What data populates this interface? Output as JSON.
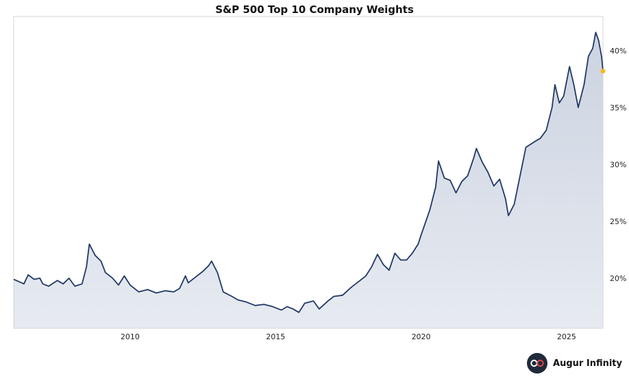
{
  "chart_data": {
    "type": "area",
    "title": "S&P 500 Top 10 Company Weights",
    "xlabel": "",
    "ylabel": "",
    "x_ticks": [
      "2010",
      "2015",
      "2020",
      "2025"
    ],
    "y_ticks": [
      "20%",
      "25%",
      "30%",
      "35%",
      "40%"
    ],
    "ylim": [
      15.6,
      43.0
    ],
    "xlim": [
      2006.0,
      2026.25
    ],
    "grid": false,
    "line_color": "#1f3864",
    "fill_color": "#c9d1df",
    "marker_color": "#f2b820",
    "series": [
      {
        "points": [
          [
            2006.0,
            19.9
          ],
          [
            2006.35,
            19.5
          ],
          [
            2006.5,
            20.3
          ],
          [
            2006.7,
            19.9
          ],
          [
            2006.9,
            20.0
          ],
          [
            2007.0,
            19.5
          ],
          [
            2007.2,
            19.3
          ],
          [
            2007.5,
            19.8
          ],
          [
            2007.7,
            19.5
          ],
          [
            2007.9,
            20.0
          ],
          [
            2008.1,
            19.3
          ],
          [
            2008.35,
            19.5
          ],
          [
            2008.5,
            21.0
          ],
          [
            2008.6,
            23.0
          ],
          [
            2008.8,
            22.0
          ],
          [
            2009.0,
            21.5
          ],
          [
            2009.15,
            20.5
          ],
          [
            2009.4,
            20.0
          ],
          [
            2009.6,
            19.4
          ],
          [
            2009.8,
            20.2
          ],
          [
            2010.0,
            19.4
          ],
          [
            2010.3,
            18.8
          ],
          [
            2010.6,
            19.0
          ],
          [
            2010.9,
            18.7
          ],
          [
            2011.2,
            18.9
          ],
          [
            2011.5,
            18.8
          ],
          [
            2011.7,
            19.1
          ],
          [
            2011.9,
            20.2
          ],
          [
            2012.0,
            19.6
          ],
          [
            2012.3,
            20.2
          ],
          [
            2012.5,
            20.6
          ],
          [
            2012.7,
            21.1
          ],
          [
            2012.8,
            21.5
          ],
          [
            2013.0,
            20.5
          ],
          [
            2013.2,
            18.8
          ],
          [
            2013.5,
            18.4
          ],
          [
            2013.7,
            18.1
          ],
          [
            2014.0,
            17.9
          ],
          [
            2014.3,
            17.6
          ],
          [
            2014.6,
            17.7
          ],
          [
            2014.9,
            17.5
          ],
          [
            2015.2,
            17.2
          ],
          [
            2015.4,
            17.5
          ],
          [
            2015.6,
            17.3
          ],
          [
            2015.8,
            17.0
          ],
          [
            2016.0,
            17.8
          ],
          [
            2016.3,
            18.0
          ],
          [
            2016.5,
            17.3
          ],
          [
            2016.8,
            18.0
          ],
          [
            2017.0,
            18.4
          ],
          [
            2017.3,
            18.5
          ],
          [
            2017.6,
            19.2
          ],
          [
            2017.9,
            19.8
          ],
          [
            2018.1,
            20.2
          ],
          [
            2018.3,
            21.0
          ],
          [
            2018.5,
            22.1
          ],
          [
            2018.7,
            21.2
          ],
          [
            2018.9,
            20.7
          ],
          [
            2019.1,
            22.2
          ],
          [
            2019.3,
            21.6
          ],
          [
            2019.5,
            21.6
          ],
          [
            2019.7,
            22.2
          ],
          [
            2019.9,
            23.0
          ],
          [
            2020.0,
            23.8
          ],
          [
            2020.3,
            26.0
          ],
          [
            2020.5,
            28.0
          ],
          [
            2020.6,
            30.3
          ],
          [
            2020.8,
            28.8
          ],
          [
            2021.0,
            28.6
          ],
          [
            2021.2,
            27.5
          ],
          [
            2021.4,
            28.5
          ],
          [
            2021.6,
            29.0
          ],
          [
            2021.8,
            30.5
          ],
          [
            2021.9,
            31.4
          ],
          [
            2022.1,
            30.2
          ],
          [
            2022.3,
            29.3
          ],
          [
            2022.5,
            28.1
          ],
          [
            2022.7,
            28.7
          ],
          [
            2022.9,
            27.0
          ],
          [
            2023.0,
            25.5
          ],
          [
            2023.2,
            26.5
          ],
          [
            2023.4,
            29.0
          ],
          [
            2023.6,
            31.5
          ],
          [
            2023.9,
            32.0
          ],
          [
            2024.1,
            32.3
          ],
          [
            2024.3,
            33.0
          ],
          [
            2024.5,
            35.0
          ],
          [
            2024.6,
            37.0
          ],
          [
            2024.75,
            35.4
          ],
          [
            2024.9,
            36.0
          ],
          [
            2025.1,
            38.6
          ],
          [
            2025.25,
            37.0
          ],
          [
            2025.4,
            35.0
          ],
          [
            2025.6,
            37.0
          ],
          [
            2025.75,
            39.5
          ],
          [
            2025.9,
            40.2
          ],
          [
            2026.0,
            41.6
          ],
          [
            2026.1,
            40.9
          ],
          [
            2026.2,
            39.5
          ],
          [
            2026.25,
            38.2
          ]
        ]
      }
    ]
  },
  "brand": {
    "name": "Augur Infinity",
    "logo_icon": "infinity-logo-icon"
  }
}
